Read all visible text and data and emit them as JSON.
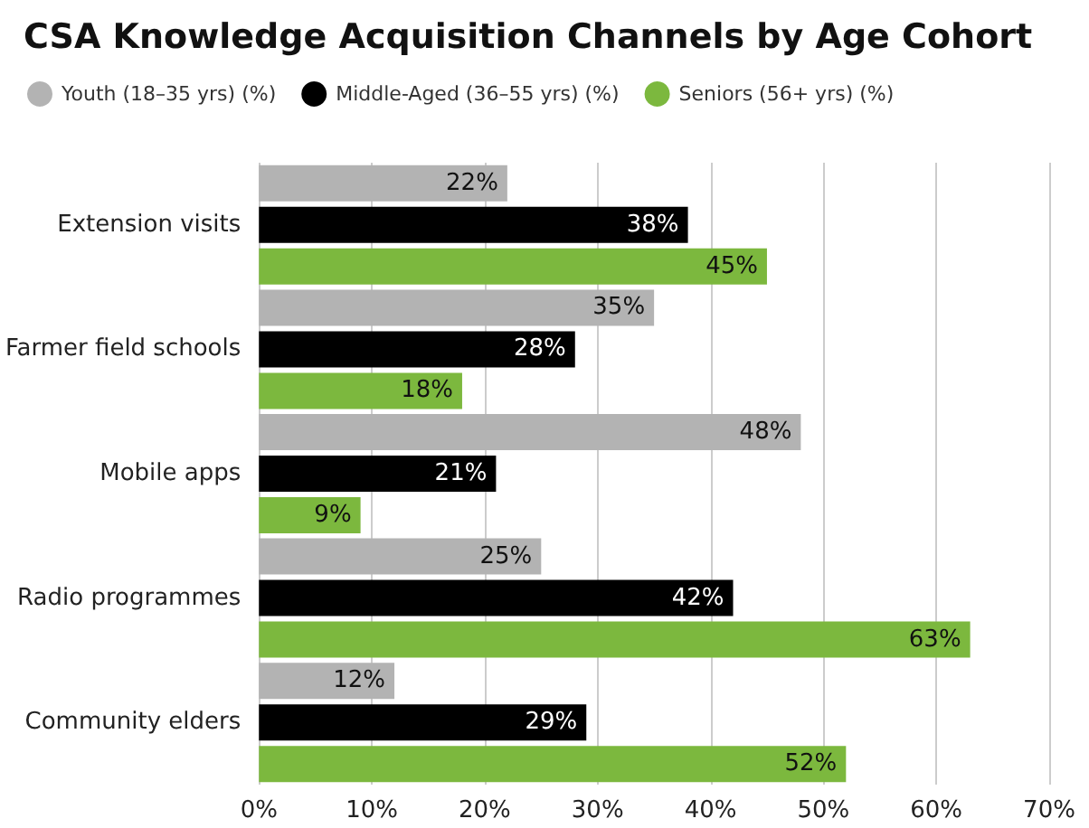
{
  "chart_data": {
    "type": "bar",
    "orientation": "horizontal",
    "title": "CSA Knowledge Acquisition Channels by Age Cohort",
    "categories": [
      "Extension visits",
      "Farmer field schools",
      "Mobile apps",
      "Radio programmes",
      "Community elders"
    ],
    "series": [
      {
        "name": "Youth (18–35 yrs) (%)",
        "color": "#b3b3b3",
        "values": [
          22,
          35,
          48,
          25,
          12
        ],
        "value_labels": [
          "22%",
          "35%",
          "48%",
          "25%",
          "12%"
        ]
      },
      {
        "name": "Middle-Aged (36–55 yrs) (%)",
        "color": "#000000",
        "values": [
          38,
          28,
          21,
          42,
          29
        ],
        "value_labels": [
          "38%",
          "28%",
          "21%",
          "42%",
          "29%"
        ]
      },
      {
        "name": "Seniors (56+ yrs) (%)",
        "color": "#7cb83e",
        "values": [
          45,
          18,
          9,
          63,
          52
        ],
        "value_labels": [
          "45%",
          "18%",
          "9%",
          "63%",
          "52%"
        ]
      }
    ],
    "xlim": [
      0,
      70
    ],
    "xticks": [
      {
        "value": 0,
        "label": "0%"
      },
      {
        "value": 10,
        "label": "10%"
      },
      {
        "value": 20,
        "label": "20%"
      },
      {
        "value": 30,
        "label": "30%"
      },
      {
        "value": 40,
        "label": "40%"
      },
      {
        "value": 50,
        "label": "50%"
      },
      {
        "value": 60,
        "label": "60%"
      },
      {
        "value": 70,
        "label": "70%"
      }
    ],
    "grid": "x",
    "legend": "top left"
  }
}
